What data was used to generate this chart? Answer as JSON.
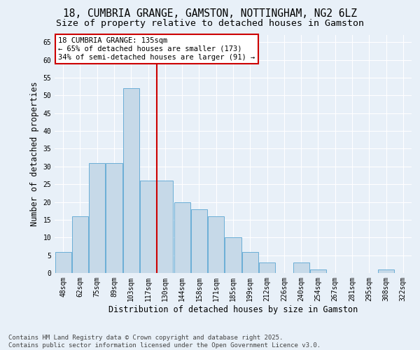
{
  "title1": "18, CUMBRIA GRANGE, GAMSTON, NOTTINGHAM, NG2 6LZ",
  "title2": "Size of property relative to detached houses in Gamston",
  "xlabel": "Distribution of detached houses by size in Gamston",
  "ylabel": "Number of detached properties",
  "categories": [
    "48sqm",
    "62sqm",
    "75sqm",
    "89sqm",
    "103sqm",
    "117sqm",
    "130sqm",
    "144sqm",
    "158sqm",
    "171sqm",
    "185sqm",
    "199sqm",
    "212sqm",
    "226sqm",
    "240sqm",
    "254sqm",
    "267sqm",
    "281sqm",
    "295sqm",
    "308sqm",
    "322sqm"
  ],
  "values": [
    6,
    16,
    31,
    31,
    52,
    26,
    26,
    20,
    18,
    16,
    10,
    6,
    3,
    0,
    3,
    1,
    0,
    0,
    0,
    1,
    0
  ],
  "bar_color": "#c6d9e8",
  "bar_edge_color": "#6aaed6",
  "background_color": "#e8f0f8",
  "grid_color": "#ffffff",
  "vline_x_idx": 5,
  "vline_color": "#cc0000",
  "annotation_title": "18 CUMBRIA GRANGE: 135sqm",
  "annotation_line1": "← 65% of detached houses are smaller (173)",
  "annotation_line2": "34% of semi-detached houses are larger (91) →",
  "annotation_box_color": "#cc0000",
  "ylim": [
    0,
    67
  ],
  "yticks": [
    0,
    5,
    10,
    15,
    20,
    25,
    30,
    35,
    40,
    45,
    50,
    55,
    60,
    65
  ],
  "footer1": "Contains HM Land Registry data © Crown copyright and database right 2025.",
  "footer2": "Contains public sector information licensed under the Open Government Licence v3.0.",
  "title_fontsize": 10.5,
  "subtitle_fontsize": 9.5,
  "tick_fontsize": 7,
  "axis_label_fontsize": 8.5,
  "footer_fontsize": 6.5,
  "annotation_fontsize": 7.5
}
